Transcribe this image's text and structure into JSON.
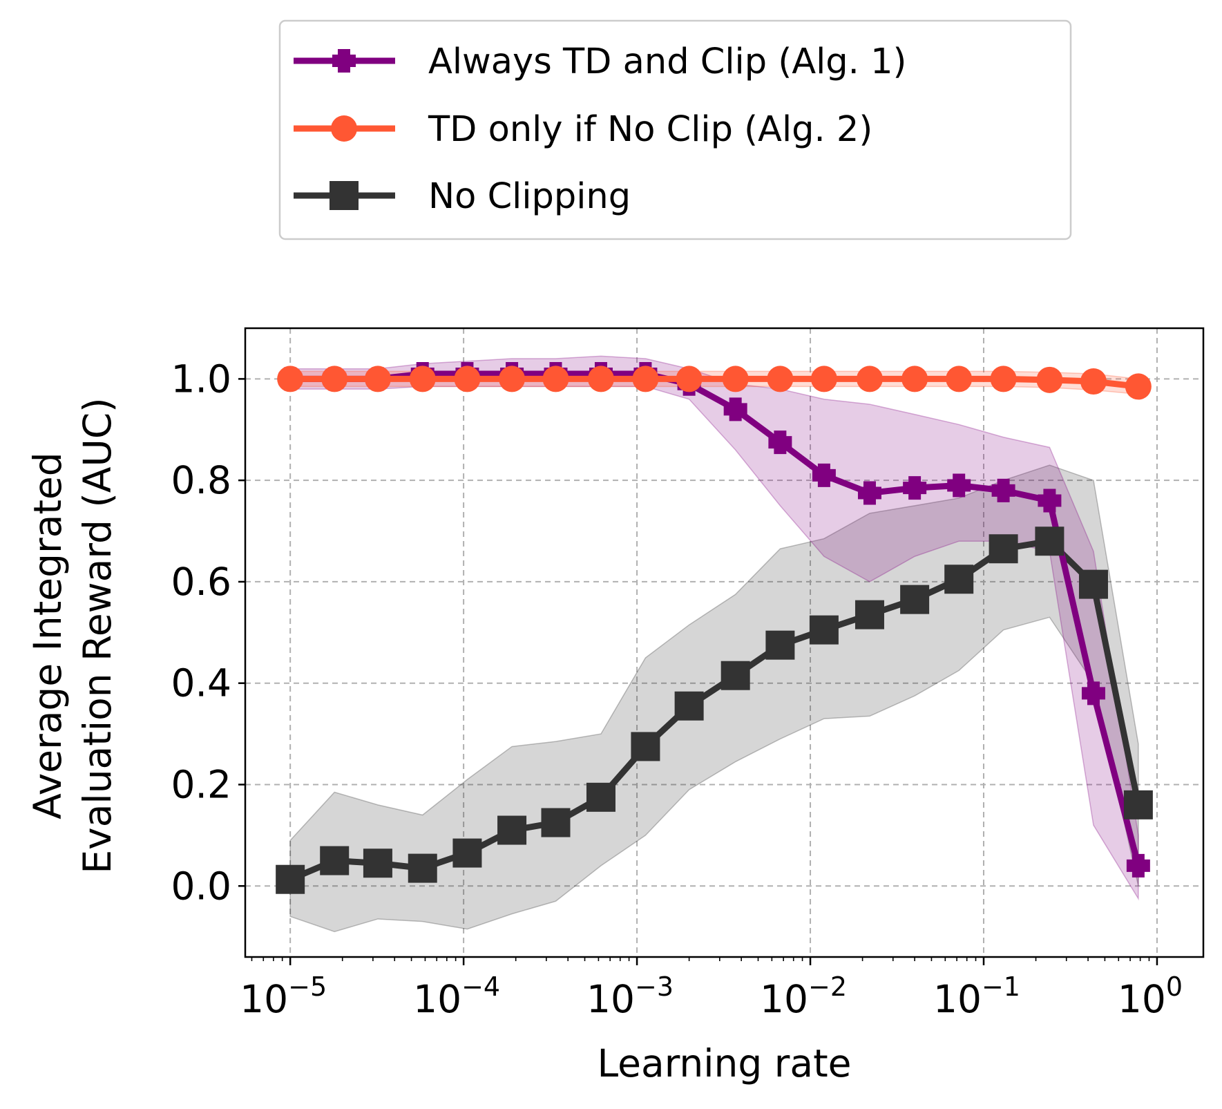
{
  "chart_data": {
    "type": "line",
    "title": "",
    "xlabel": "Learning rate",
    "ylabel_lines": [
      "Average Integrated",
      "Evaluation Reward (AUC)"
    ],
    "xscale": "log",
    "xlim": [
      5.5e-06,
      1.85
    ],
    "ylim": [
      -0.14,
      1.1
    ],
    "x_ticks": [
      {
        "value": 1e-05,
        "base": "10",
        "exp": "−5"
      },
      {
        "value": 0.0001,
        "base": "10",
        "exp": "−4"
      },
      {
        "value": 0.001,
        "base": "10",
        "exp": "−3"
      },
      {
        "value": 0.01,
        "base": "10",
        "exp": "−2"
      },
      {
        "value": 0.1,
        "base": "10",
        "exp": "−1"
      },
      {
        "value": 1,
        "base": "10",
        "exp": "0"
      }
    ],
    "y_ticks": [
      {
        "value": 0.0,
        "label": "0.0"
      },
      {
        "value": 0.2,
        "label": "0.2"
      },
      {
        "value": 0.4,
        "label": "0.4"
      },
      {
        "value": 0.6,
        "label": "0.6"
      },
      {
        "value": 0.8,
        "label": "0.8"
      },
      {
        "value": 1.0,
        "label": "1.0"
      }
    ],
    "grid": true,
    "legend_position": "top, outside plot",
    "x": [
      1e-05,
      1.8e-05,
      3.2e-05,
      5.8e-05,
      0.000105,
      0.00019,
      0.00034,
      0.00062,
      0.00112,
      0.002,
      0.0037,
      0.0067,
      0.012,
      0.022,
      0.04,
      0.072,
      0.13,
      0.24,
      0.43,
      0.78
    ],
    "series": [
      {
        "name": "Always TD and Clip (Alg. 1)",
        "color": "#800080",
        "marker": "plus",
        "values": [
          1.0,
          1.0,
          1.0,
          1.01,
          1.01,
          1.01,
          1.01,
          1.01,
          1.01,
          0.99,
          0.94,
          0.875,
          0.81,
          0.775,
          0.785,
          0.79,
          0.78,
          0.76,
          0.38,
          0.04
        ],
        "band_low": [
          0.98,
          0.98,
          0.98,
          0.985,
          0.985,
          0.985,
          0.985,
          0.985,
          0.985,
          0.96,
          0.86,
          0.75,
          0.65,
          0.6,
          0.65,
          0.68,
          0.68,
          0.66,
          0.12,
          -0.025
        ],
        "band_high": [
          1.02,
          1.02,
          1.02,
          1.03,
          1.035,
          1.04,
          1.04,
          1.045,
          1.04,
          1.02,
          0.99,
          0.98,
          0.96,
          0.95,
          0.93,
          0.91,
          0.885,
          0.865,
          0.66,
          0.1
        ]
      },
      {
        "name": "TD only if No Clip (Alg. 2)",
        "color": "#ff5733",
        "marker": "circle",
        "values": [
          1.0,
          1.0,
          1.0,
          1.0,
          1.0,
          1.0,
          1.0,
          1.0,
          1.0,
          1.0,
          1.0,
          1.0,
          1.0,
          1.0,
          1.0,
          1.0,
          1.0,
          0.998,
          0.995,
          0.985
        ],
        "band_low": [
          0.985,
          0.985,
          0.985,
          0.985,
          0.985,
          0.985,
          0.985,
          0.985,
          0.985,
          0.985,
          0.985,
          0.985,
          0.985,
          0.985,
          0.985,
          0.985,
          0.985,
          0.983,
          0.978,
          0.97
        ],
        "band_high": [
          1.015,
          1.015,
          1.015,
          1.015,
          1.015,
          1.015,
          1.015,
          1.015,
          1.015,
          1.015,
          1.015,
          1.015,
          1.015,
          1.015,
          1.015,
          1.015,
          1.015,
          1.013,
          1.01,
          1.0
        ]
      },
      {
        "name": "No Clipping",
        "color": "#333333",
        "marker": "square",
        "values": [
          0.013,
          0.05,
          0.045,
          0.035,
          0.065,
          0.11,
          0.125,
          0.175,
          0.275,
          0.355,
          0.415,
          0.475,
          0.505,
          0.535,
          0.565,
          0.605,
          0.665,
          0.68,
          0.595,
          0.16
        ],
        "band_low": [
          -0.06,
          -0.09,
          -0.065,
          -0.07,
          -0.085,
          -0.055,
          -0.03,
          0.04,
          0.1,
          0.19,
          0.245,
          0.29,
          0.33,
          0.335,
          0.375,
          0.425,
          0.505,
          0.53,
          0.4,
          0.0
        ],
        "band_high": [
          0.09,
          0.185,
          0.16,
          0.14,
          0.21,
          0.275,
          0.285,
          0.3,
          0.45,
          0.515,
          0.575,
          0.665,
          0.685,
          0.735,
          0.75,
          0.765,
          0.8,
          0.83,
          0.8,
          0.28
        ]
      }
    ]
  }
}
